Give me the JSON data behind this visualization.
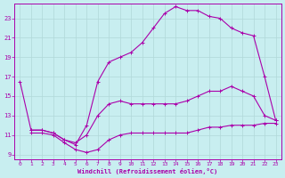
{
  "background_color": "#c8eef0",
  "grid_color": "#b0d8d8",
  "line_color": "#aa00aa",
  "xlabel": "Windchill (Refroidissement éolien,°C)",
  "xlim": [
    -0.5,
    23.5
  ],
  "ylim": [
    8.5,
    24.5
  ],
  "yticks": [
    9,
    11,
    13,
    15,
    17,
    19,
    21,
    23
  ],
  "xticks": [
    0,
    1,
    2,
    3,
    4,
    5,
    6,
    7,
    8,
    9,
    10,
    11,
    12,
    13,
    14,
    15,
    16,
    17,
    18,
    19,
    20,
    21,
    22,
    23
  ],
  "curve1_x": [
    1,
    2,
    3,
    4,
    5,
    6,
    7,
    8,
    9,
    10,
    11,
    12,
    13,
    14,
    15,
    16,
    17,
    18,
    19,
    20,
    21,
    22,
    23
  ],
  "curve1_y": [
    11.2,
    11.2,
    11.0,
    10.2,
    9.5,
    9.2,
    9.5,
    10.5,
    11.0,
    11.2,
    11.2,
    11.2,
    11.2,
    11.2,
    11.2,
    11.5,
    11.8,
    11.8,
    12.0,
    12.0,
    12.0,
    12.2,
    12.2
  ],
  "curve2_x": [
    0,
    1,
    2,
    3,
    4,
    5,
    6,
    7,
    8,
    9,
    10,
    11,
    12,
    13,
    14,
    15,
    16,
    17,
    18,
    19,
    20,
    21,
    22,
    23
  ],
  "curve2_y": [
    16.5,
    11.5,
    11.5,
    11.2,
    10.5,
    10.2,
    11.0,
    13.0,
    14.2,
    14.5,
    14.2,
    14.2,
    14.2,
    14.2,
    14.2,
    14.5,
    15.0,
    15.5,
    15.5,
    16.0,
    15.5,
    15.0,
    13.0,
    12.5
  ],
  "curve3_x": [
    1,
    2,
    3,
    4,
    5,
    6,
    7,
    8,
    9,
    10,
    11,
    12,
    13,
    14,
    15,
    16,
    17,
    18,
    19,
    20,
    21,
    22,
    23
  ],
  "curve3_y": [
    11.5,
    11.5,
    11.2,
    10.5,
    10.0,
    12.0,
    16.5,
    18.5,
    19.0,
    19.5,
    20.5,
    22.0,
    23.5,
    24.2,
    23.8,
    23.8,
    23.2,
    23.0,
    22.0,
    21.5,
    21.2,
    17.0,
    12.5
  ]
}
